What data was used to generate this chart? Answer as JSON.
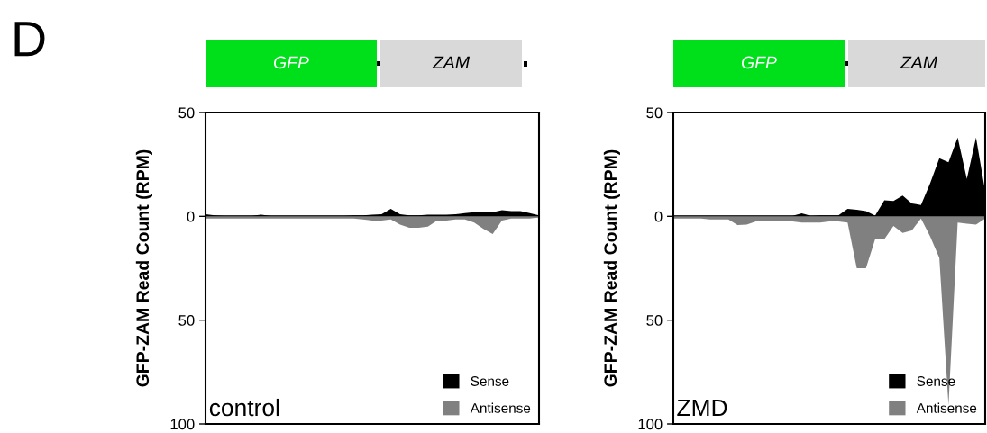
{
  "chart_data": [
    {
      "type": "area",
      "ylabel": "GFP-ZAM Read Count (RPM)",
      "annotations": [
        "GFP",
        "ZAM",
        "control",
        "D"
      ],
      "categories": [
        null,
        null,
        null,
        null,
        null,
        null,
        null,
        null,
        null,
        null,
        null,
        null,
        null,
        null,
        null,
        null,
        null,
        null,
        null,
        null,
        null,
        null,
        null,
        null,
        null,
        null,
        null,
        null,
        null,
        null,
        null,
        null,
        null,
        null,
        null,
        null,
        null
      ],
      "series": [
        {
          "name": "Sense",
          "color": "#000000",
          "values": [
            1,
            0.5,
            0.3,
            0.3,
            0.3,
            0.3,
            0.8,
            0.3,
            0.3,
            0.3,
            0.3,
            0.3,
            0.3,
            0.3,
            0.3,
            0.3,
            0.5,
            0.5,
            0.8,
            1,
            3.6,
            1,
            0.5,
            0.5,
            0.8,
            0.8,
            0.8,
            1,
            1.5,
            2,
            2,
            2,
            3,
            2.5,
            2.5,
            1.5,
            0.5
          ]
        },
        {
          "name": "Antisense",
          "color": "#808080",
          "values": [
            -1,
            -1,
            -1,
            -1,
            -1,
            -1,
            -1,
            -1,
            -1,
            -1,
            -1,
            -1,
            -1,
            -1,
            -1,
            -1,
            -1,
            -1.5,
            -2,
            -2,
            -1.5,
            -4,
            -5.5,
            -5.5,
            -5,
            -2,
            -2,
            -1.5,
            -1.5,
            -3,
            -6,
            -8.5,
            -2,
            -1,
            -1,
            -1,
            -0.5
          ]
        }
      ],
      "ylim": [
        -100,
        50
      ],
      "yticks": [
        {
          "value": 50,
          "label": "50"
        },
        0,
        {
          "value": -50,
          "label": "50"
        },
        {
          "value": -100,
          "label": "100"
        }
      ],
      "tick_labels": "y",
      "grid": false,
      "legend": "bottom right",
      "ref_lines": [
        {
          "axis": "y",
          "value": 0,
          "color": "#000000"
        }
      ]
    },
    {
      "type": "area",
      "ylabel": "GFP-ZAM Read Count (RPM)",
      "annotations": [
        "GFP",
        "ZAM",
        "ZMD"
      ],
      "categories": [
        null,
        null,
        null,
        null,
        null,
        null,
        null,
        null,
        null,
        null,
        null,
        null,
        null,
        null,
        null,
        null,
        null,
        null,
        null,
        null,
        null,
        null,
        null,
        null,
        null,
        null,
        null,
        null,
        null,
        null,
        null,
        null,
        null,
        null,
        null
      ],
      "series": [
        {
          "name": "Sense",
          "color": "#000000",
          "values": [
            0.2,
            0.2,
            0.2,
            0.2,
            0.2,
            0.2,
            0.2,
            0.2,
            0.2,
            0.2,
            0.2,
            0.2,
            0.2,
            0.3,
            1.4,
            0.3,
            0.5,
            0.5,
            0.5,
            3.6,
            3.2,
            2.5,
            0.4,
            7.7,
            7.4,
            10,
            6.2,
            5.5,
            16,
            28,
            26,
            38,
            18,
            38,
            12
          ]
        },
        {
          "name": "Antisense",
          "color": "#808080",
          "values": [
            -1,
            -1,
            -1,
            -1,
            -1.5,
            -1.5,
            -1.5,
            -4.2,
            -4,
            -2.5,
            -2,
            -2.5,
            -2,
            -2.5,
            -3,
            -3,
            -3,
            -2.5,
            -2.5,
            -3,
            -25,
            -25,
            -11,
            -11,
            -4.6,
            -8,
            -6.8,
            -1,
            -9.7,
            -20,
            -91,
            -3,
            -3.5,
            -4,
            -1
          ]
        }
      ],
      "ylim": [
        -100,
        50
      ],
      "yticks": [
        {
          "value": 50,
          "label": "50"
        },
        0,
        {
          "value": -50,
          "label": "50"
        },
        {
          "value": -100,
          "label": "100"
        }
      ],
      "tick_labels": "y",
      "grid": false,
      "legend": "bottom right",
      "ref_lines": [
        {
          "axis": "y",
          "value": 0,
          "color": "#000000"
        }
      ]
    }
  ]
}
